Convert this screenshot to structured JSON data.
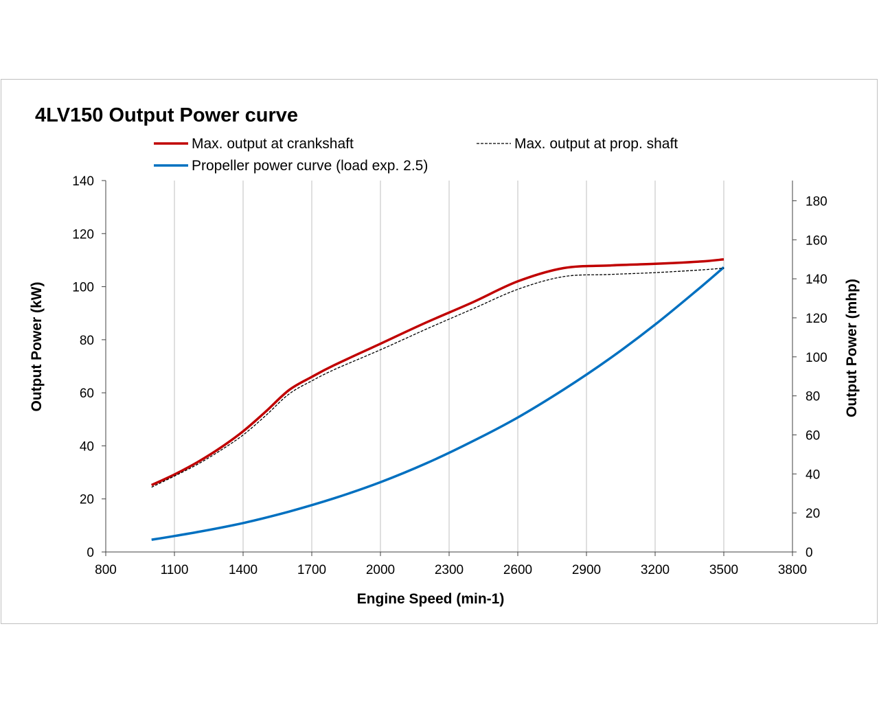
{
  "chart_data": {
    "type": "line",
    "title": "4LV150 Output Power curve",
    "xlabel": "Engine Speed (min-1)",
    "ylabel": "Output Power (kW)",
    "y2label": "Output Power (mhp)",
    "xlim": [
      800,
      3800
    ],
    "ylim": [
      0,
      140
    ],
    "y2lim": [
      0,
      190.35
    ],
    "x_ticks": [
      800,
      1100,
      1400,
      1700,
      2000,
      2300,
      2600,
      2900,
      3200,
      3500,
      3800
    ],
    "x_tick_labels": [
      "800",
      "1100",
      "1400",
      "1700",
      "2000",
      "2300",
      "2600",
      "2900",
      "3200",
      "3500",
      "3800"
    ],
    "y_ticks": [
      0,
      20,
      40,
      60,
      80,
      100,
      120,
      140
    ],
    "y_tick_labels": [
      "0",
      "20",
      "40",
      "60",
      "80",
      "100",
      "120",
      "140"
    ],
    "y2_ticks": [
      0,
      20,
      40,
      60,
      80,
      100,
      120,
      140,
      160,
      180
    ],
    "y2_tick_labels": [
      "0",
      "20",
      "40",
      "60",
      "80",
      "100",
      "120",
      "140",
      "160",
      "180"
    ],
    "grid": "vertical",
    "legend_position": "top",
    "series": [
      {
        "name": "Max. output at crankshaft",
        "color": "#c00000",
        "style": "solid",
        "x": [
          1000,
          1100,
          1200,
          1300,
          1400,
          1500,
          1600,
          1700,
          1800,
          2000,
          2200,
          2400,
          2600,
          2800,
          3000,
          3200,
          3400,
          3500
        ],
        "values": [
          25.2,
          29.2,
          33.8,
          39.2,
          45.5,
          53.0,
          61.0,
          66.0,
          70.5,
          78.5,
          86.5,
          94.0,
          102.0,
          107.0,
          108.0,
          108.6,
          109.5,
          110.3
        ]
      },
      {
        "name": "Max. output at prop. shaft",
        "color": "#000000",
        "style": "dashed",
        "x": [
          1000,
          1100,
          1200,
          1300,
          1400,
          1500,
          1600,
          1700,
          1800,
          2000,
          2200,
          2400,
          2600,
          2800,
          3000,
          3200,
          3400,
          3500
        ],
        "values": [
          24.4,
          28.6,
          33.0,
          38.2,
          44.1,
          51.5,
          59.5,
          64.5,
          68.8,
          76.2,
          84.0,
          91.5,
          99.0,
          103.8,
          104.6,
          105.3,
          106.3,
          107.0
        ]
      },
      {
        "name": "Propeller power curve (load exp. 2.5)",
        "color": "#0070c0",
        "style": "solid",
        "x": [
          1000,
          1200,
          1400,
          1600,
          1800,
          2000,
          2200,
          2400,
          2600,
          2800,
          3000,
          3200,
          3400,
          3500
        ],
        "values": [
          4.6,
          7.5,
          10.9,
          15.2,
          20.3,
          26.3,
          33.4,
          41.6,
          50.7,
          61.2,
          72.8,
          85.7,
          99.9,
          107.3
        ]
      }
    ]
  }
}
